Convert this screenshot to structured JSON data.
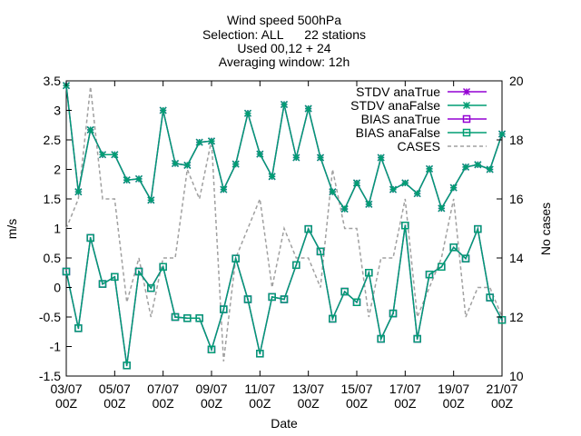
{
  "title_lines": [
    "Wind speed 500hPa",
    "Selection: ALL      22 stations",
    "Used 00,12 + 24",
    "Averaging window: 12h"
  ],
  "colors": {
    "stdv_true": "#9400d3",
    "stdv_false": "#009e73",
    "bias_true": "#9400d3",
    "bias_false": "#009e73",
    "cases": "#a0a0a0"
  },
  "chart_data": {
    "type": "line",
    "title": "Wind speed 500hPa",
    "xlabel": "Date",
    "ylabel": "m/s",
    "y2label": "No cases",
    "ylim": [
      -1.5,
      3.5
    ],
    "y2lim": [
      10,
      20
    ],
    "yticks": [
      "-1.5",
      "-1",
      "-0.5",
      "0",
      "0.5",
      "1",
      "1.5",
      "2",
      "2.5",
      "3",
      "3.5"
    ],
    "y2ticks": [
      "10",
      "12",
      "14",
      "16",
      "18",
      "20"
    ],
    "xticks": [
      {
        "day": "03/07",
        "hour": "00Z"
      },
      {
        "day": "05/07",
        "hour": "00Z"
      },
      {
        "day": "07/07",
        "hour": "00Z"
      },
      {
        "day": "09/07",
        "hour": "00Z"
      },
      {
        "day": "11/07",
        "hour": "00Z"
      },
      {
        "day": "13/07",
        "hour": "00Z"
      },
      {
        "day": "15/07",
        "hour": "00Z"
      },
      {
        "day": "17/07",
        "hour": "00Z"
      },
      {
        "day": "19/07",
        "hour": "00Z"
      },
      {
        "day": "21/07",
        "hour": "00Z"
      }
    ],
    "x_start": "03/07 00Z",
    "x_end": "21/07 00Z",
    "x_step_hours": 12,
    "grid": false,
    "legend_position": "top-right",
    "series": [
      {
        "name": "STDV anaTrue",
        "axis": "y1",
        "values": [
          3.42,
          1.62,
          2.67,
          2.25,
          2.25,
          1.82,
          1.84,
          1.48,
          3.0,
          2.1,
          2.07,
          2.46,
          2.48,
          1.66,
          2.09,
          2.95,
          2.26,
          1.88,
          3.1,
          2.2,
          3.03,
          2.2,
          1.62,
          1.33,
          1.77,
          1.41,
          2.2,
          1.66,
          1.77,
          1.59,
          2.01,
          1.34,
          1.69,
          2.04,
          2.08,
          2.0,
          2.6
        ]
      },
      {
        "name": "STDV anaFalse",
        "axis": "y1",
        "values": [
          3.42,
          1.62,
          2.67,
          2.25,
          2.25,
          1.82,
          1.84,
          1.48,
          3.0,
          2.1,
          2.07,
          2.46,
          2.48,
          1.66,
          2.09,
          2.95,
          2.26,
          1.88,
          3.1,
          2.2,
          3.03,
          2.2,
          1.62,
          1.33,
          1.77,
          1.41,
          2.2,
          1.66,
          1.77,
          1.59,
          2.01,
          1.34,
          1.69,
          2.04,
          2.08,
          2.0,
          2.6
        ]
      },
      {
        "name": "BIAS anaTrue",
        "axis": "y1",
        "values": [
          0.27,
          -0.69,
          0.84,
          0.06,
          0.18,
          -1.32,
          0.27,
          -0.01,
          0.35,
          -0.5,
          -0.52,
          -0.52,
          -1.05,
          -0.37,
          0.49,
          -0.2,
          -1.12,
          -0.16,
          -0.2,
          0.38,
          0.99,
          0.61,
          -0.53,
          -0.07,
          -0.25,
          0.25,
          -0.87,
          -0.44,
          1.05,
          -0.87,
          0.22,
          0.35,
          0.68,
          0.49,
          0.99,
          -0.17,
          -0.55
        ]
      },
      {
        "name": "BIAS anaFalse",
        "axis": "y1",
        "values": [
          0.27,
          -0.69,
          0.84,
          0.06,
          0.18,
          -1.32,
          0.27,
          -0.01,
          0.35,
          -0.5,
          -0.52,
          -0.52,
          -1.05,
          -0.37,
          0.49,
          -0.2,
          -1.12,
          -0.16,
          -0.2,
          0.38,
          0.99,
          0.61,
          -0.53,
          -0.07,
          -0.25,
          0.25,
          -0.87,
          -0.44,
          1.05,
          -0.87,
          0.22,
          0.35,
          0.68,
          0.49,
          0.99,
          -0.17,
          -0.55
        ]
      },
      {
        "name": "CASES",
        "axis": "y2",
        "values": [
          15,
          16,
          19.8,
          16,
          16,
          12.5,
          14,
          12,
          14,
          14,
          17,
          16,
          18,
          10.5,
          14,
          15,
          16,
          13,
          15,
          14,
          14,
          13,
          17,
          15,
          15,
          12,
          14,
          14,
          16,
          12,
          13,
          14,
          16,
          12,
          13,
          13,
          12
        ]
      }
    ]
  }
}
